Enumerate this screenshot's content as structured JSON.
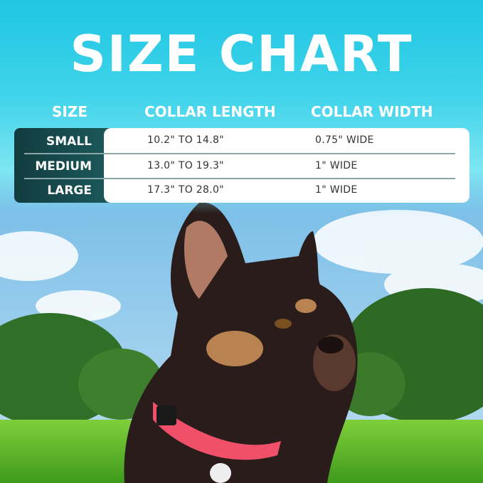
{
  "title": "SIZE CHART",
  "headers": {
    "size": "SIZE",
    "length": "COLLAR LENGTH",
    "width": "COLLAR WIDTH"
  },
  "rows": [
    {
      "size": "SMALL",
      "length": "10.2\" TO 14.8\"",
      "width": "0.75\" WIDE"
    },
    {
      "size": "MEDIUM",
      "length": "13.0\" TO 19.3\"",
      "width": "1\" WIDE"
    },
    {
      "size": "LARGE",
      "length": "17.3\" TO 28.0\"",
      "width": "1\" WIDE"
    }
  ],
  "colors": {
    "banner": "#1fc6e2",
    "row_header": "#123c3f",
    "collar": "#f0506a"
  }
}
